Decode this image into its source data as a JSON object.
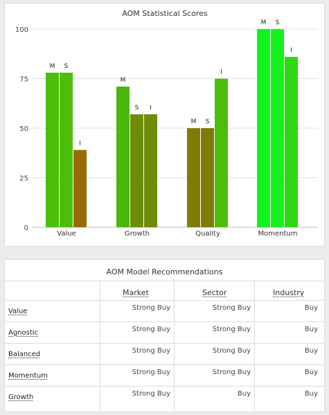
{
  "chart_data": {
    "type": "bar",
    "title": "AOM Statistical Scores",
    "categories": [
      "Value",
      "Growth",
      "Quality",
      "Momentum"
    ],
    "series": [
      {
        "name": "M",
        "values": [
          78,
          71,
          50,
          100
        ]
      },
      {
        "name": "S",
        "values": [
          78,
          57,
          50,
          100
        ]
      },
      {
        "name": "I",
        "values": [
          39,
          57,
          75,
          86
        ]
      }
    ],
    "bar_colors": [
      [
        "#4cbe0a",
        "#4cbe0a",
        "#9a6a06"
      ],
      [
        "#48b80a",
        "#6e8d06",
        "#6e8d06"
      ],
      [
        "#7f7c05",
        "#7f7c05",
        "#4cbe0a"
      ],
      [
        "#14f21d",
        "#14f21d",
        "#2fd90f"
      ]
    ],
    "bar_labels": [
      "M",
      "S",
      "I"
    ],
    "ylim": [
      0,
      100
    ],
    "yticks": [
      0,
      25,
      50,
      75,
      100
    ],
    "grid": true
  },
  "recommendations": {
    "title": "AOM Model Recommendations",
    "columns": [
      "Market",
      "Sector",
      "Industry"
    ],
    "rows": [
      {
        "label": "Value",
        "market": "Strong Buy",
        "sector": "Strong Buy",
        "industry": "Buy"
      },
      {
        "label": "Agnostic",
        "market": "Strong Buy",
        "sector": "Strong Buy",
        "industry": "Buy"
      },
      {
        "label": "Balanced",
        "market": "Strong Buy",
        "sector": "Strong Buy",
        "industry": "Buy"
      },
      {
        "label": "Momentum",
        "market": "Strong Buy",
        "sector": "Strong Buy",
        "industry": "Buy"
      },
      {
        "label": "Growth",
        "market": "Strong Buy",
        "sector": "Buy",
        "industry": "Buy"
      }
    ]
  }
}
